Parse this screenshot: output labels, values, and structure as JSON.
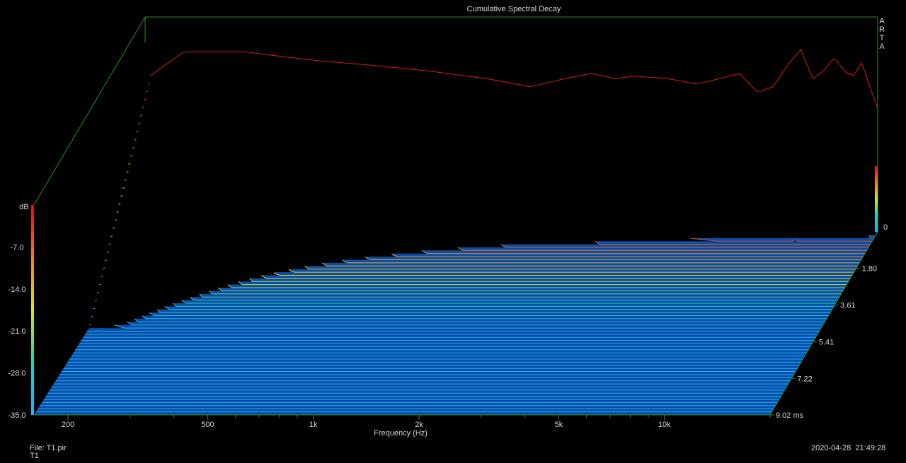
{
  "chart_data": {
    "type": "waterfall",
    "title": "Cumulative Spectral Decay",
    "xlabel": "Frequency (Hz)",
    "ylabel": "dB",
    "x_scale": "log",
    "x_ticks": [
      200,
      500,
      1000,
      2000,
      5000,
      10000
    ],
    "x_tick_labels": [
      "200",
      "500",
      "1k",
      "2k",
      "5k",
      "10k"
    ],
    "xlim": [
      160,
      20000
    ],
    "ylim": [
      -35.0,
      0
    ],
    "y_ticks": [
      -35.0,
      -28.0,
      -21.0,
      -14.0,
      -7.0
    ],
    "y_tick_labels": [
      "-35.0",
      "-28.0",
      "-21.0",
      "-14.0",
      "-7.0"
    ],
    "z_label_top": "0",
    "time_ticks": [
      1.8,
      3.61,
      5.41,
      7.22,
      9.02
    ],
    "time_tick_labels": [
      "1.80",
      "3.61",
      "5.41",
      "7.22",
      "9.02 ms"
    ],
    "time_range_ms": [
      0,
      9.02
    ],
    "grid": false,
    "initial_response": {
      "freq_hz": [
        160,
        200,
        300,
        400,
        500,
        700,
        1000,
        1500,
        2000,
        2500,
        3000,
        3500,
        4000,
        5000,
        6000,
        7000,
        8000,
        9000,
        10000,
        11000,
        12000,
        13000,
        14000,
        15000,
        16000,
        17000,
        18000,
        19000,
        20000
      ],
      "level_db": [
        -6.0,
        -1.5,
        -1.5,
        -2.5,
        -3.2,
        -4.0,
        -5.0,
        -6.5,
        -8.0,
        -6.5,
        -5.5,
        -6.5,
        -6.0,
        -6.5,
        -7.5,
        -6.5,
        -5.5,
        -9.0,
        -8.0,
        -4.0,
        -1.0,
        -6.5,
        -5.0,
        -2.5,
        -5.0,
        -6.0,
        -3.5,
        -8.0,
        -12.0
      ]
    }
  },
  "branding": {
    "letters": [
      "A",
      "R",
      "T",
      "A"
    ]
  },
  "footer": {
    "file_label": "File: T1.pir",
    "trace_name": "T1",
    "date": "2020-04-28",
    "time": "21:49:28"
  },
  "colors": {
    "background": "#000000",
    "floor": "#0a4ea8",
    "frame": "#2e8b2e",
    "text": "#d8d8d8"
  }
}
